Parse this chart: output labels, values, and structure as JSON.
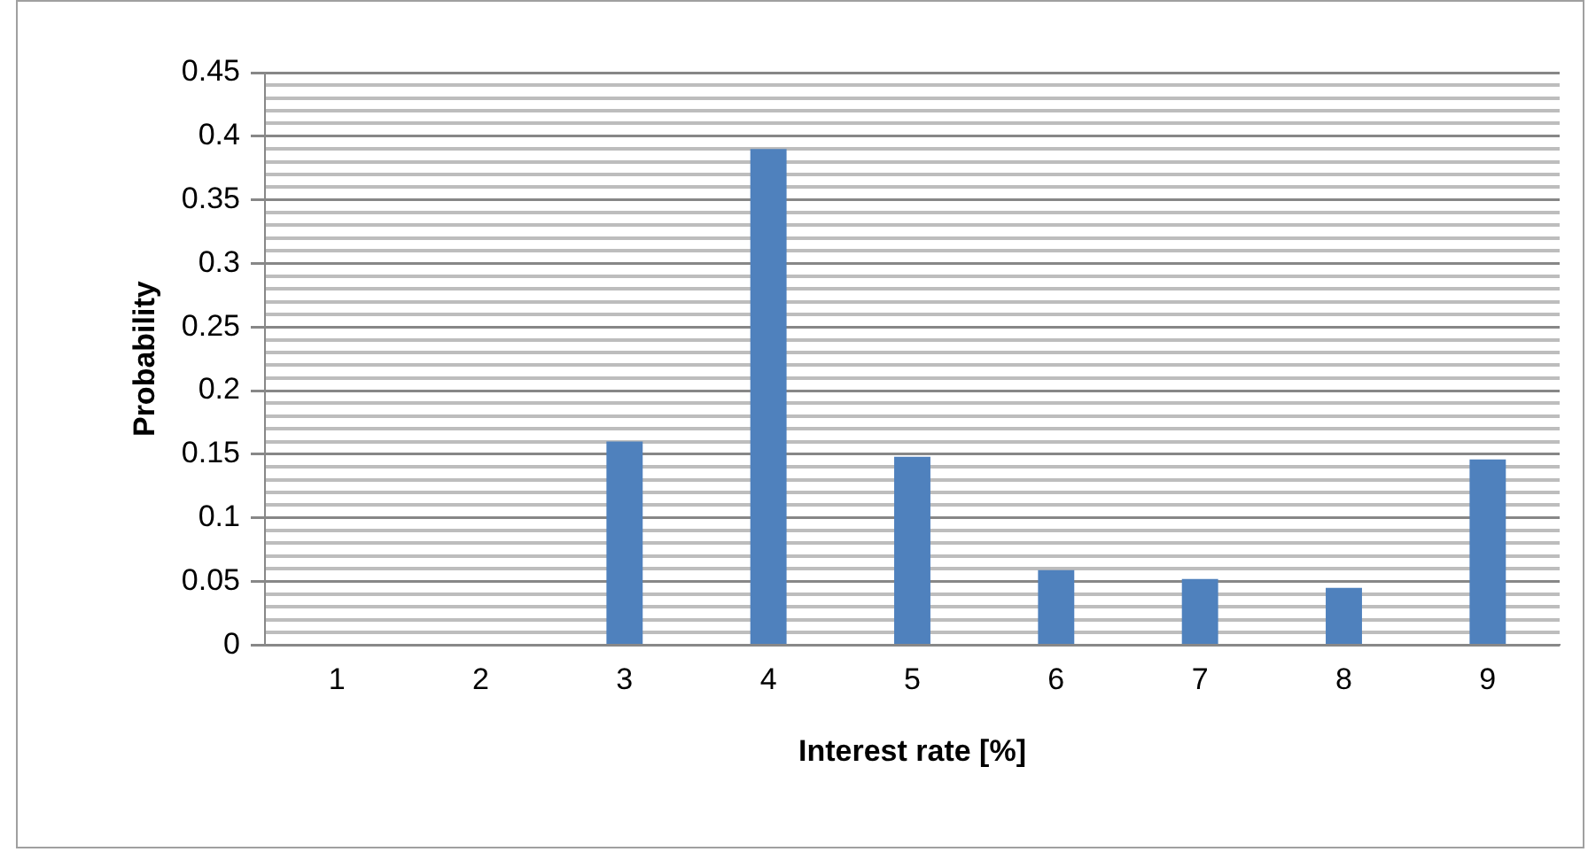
{
  "chart_data": {
    "type": "bar",
    "xlabel": "Interest rate [%]",
    "ylabel": "Probability",
    "categories": [
      "1",
      "2",
      "3",
      "4",
      "5",
      "6",
      "7",
      "8",
      "9"
    ],
    "values": [
      0,
      0,
      0.16,
      0.39,
      0.148,
      0.059,
      0.052,
      0.045,
      0.146
    ],
    "color": "#4f81bd",
    "ylim": [
      0,
      0.45
    ],
    "yticks": [
      0,
      {
        "value": 0.01,
        "label": null
      },
      {
        "value": 0.02,
        "label": null
      },
      {
        "value": 0.03,
        "label": null
      },
      {
        "value": 0.04,
        "label": null
      },
      {
        "value": 0.05,
        "label": "0.05"
      },
      {
        "value": 0.06,
        "label": null
      },
      {
        "value": 0.07,
        "label": null
      },
      {
        "value": 0.08,
        "label": null
      },
      {
        "value": 0.09,
        "label": null
      },
      0.1,
      {
        "value": 0.11,
        "label": null
      },
      {
        "value": 0.12,
        "label": null
      },
      {
        "value": 0.13,
        "label": null
      },
      {
        "value": 0.14,
        "label": null
      },
      0.15,
      {
        "value": 0.16,
        "label": null
      },
      {
        "value": 0.17,
        "label": null
      },
      {
        "value": 0.18,
        "label": null
      },
      {
        "value": 0.19,
        "label": null
      },
      0.2,
      {
        "value": 0.21,
        "label": null
      },
      {
        "value": 0.22,
        "label": null
      },
      {
        "value": 0.23,
        "label": null
      },
      {
        "value": 0.24,
        "label": null
      },
      0.25,
      {
        "value": 0.26,
        "label": null
      },
      {
        "value": 0.27,
        "label": null
      },
      {
        "value": 0.28,
        "label": null
      },
      {
        "value": 0.29,
        "label": null
      },
      0.3,
      {
        "value": 0.31,
        "label": null
      },
      {
        "value": 0.32,
        "label": null
      },
      {
        "value": 0.33,
        "label": null
      },
      {
        "value": 0.34,
        "label": null
      },
      0.35,
      {
        "value": 0.36,
        "label": null
      },
      {
        "value": 0.37,
        "label": null
      },
      {
        "value": 0.38,
        "label": null
      },
      {
        "value": 0.39,
        "label": null
      },
      0.4,
      {
        "value": 0.41,
        "label": null
      },
      {
        "value": 0.42,
        "label": null
      },
      {
        "value": 0.43,
        "label": null
      },
      {
        "value": 0.44,
        "label": null
      },
      0.45
    ],
    "grid": "y",
    "legend": false
  }
}
